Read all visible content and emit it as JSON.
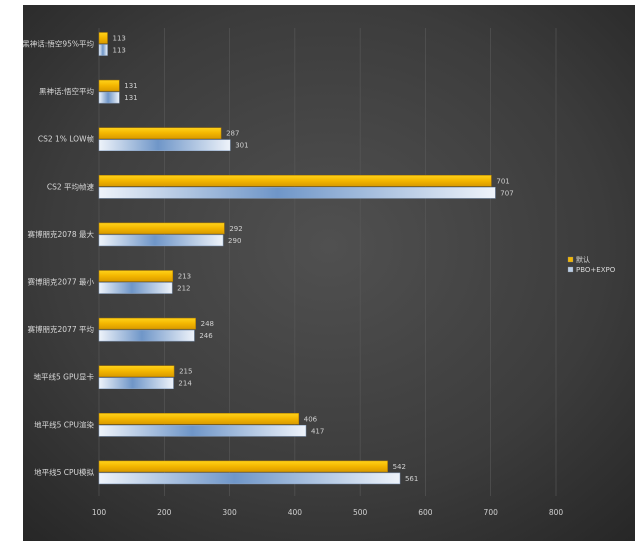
{
  "chart_data": {
    "type": "bar",
    "orientation": "horizontal",
    "categories": [
      "黑神话:悟空95%平均",
      "黑神话:悟空平均",
      "CS2 1% LOW帧",
      "CS2 平均帧速",
      "赛博朋克2078 最大",
      "赛博朋克2077 最小",
      "赛博朋克2077 平均",
      "地平线5 GPU显卡",
      "地平线5 CPU渲染",
      "地平线5 CPU模拟"
    ],
    "series": [
      {
        "name": "默认",
        "color": "#f2b705",
        "values": [
          113,
          131,
          287,
          701,
          292,
          213,
          248,
          215,
          406,
          542
        ]
      },
      {
        "name": "PBO+EXPO",
        "color": "#b9cde6",
        "values": [
          113,
          131,
          301,
          707,
          290,
          212,
          246,
          214,
          417,
          561
        ]
      }
    ],
    "xlim": [
      100,
      800
    ],
    "xticks": [
      "100",
      "200",
      "300",
      "400",
      "500",
      "600",
      "700",
      "800"
    ],
    "grid": true,
    "legend_position": "right",
    "background": "#3a3a3a"
  }
}
